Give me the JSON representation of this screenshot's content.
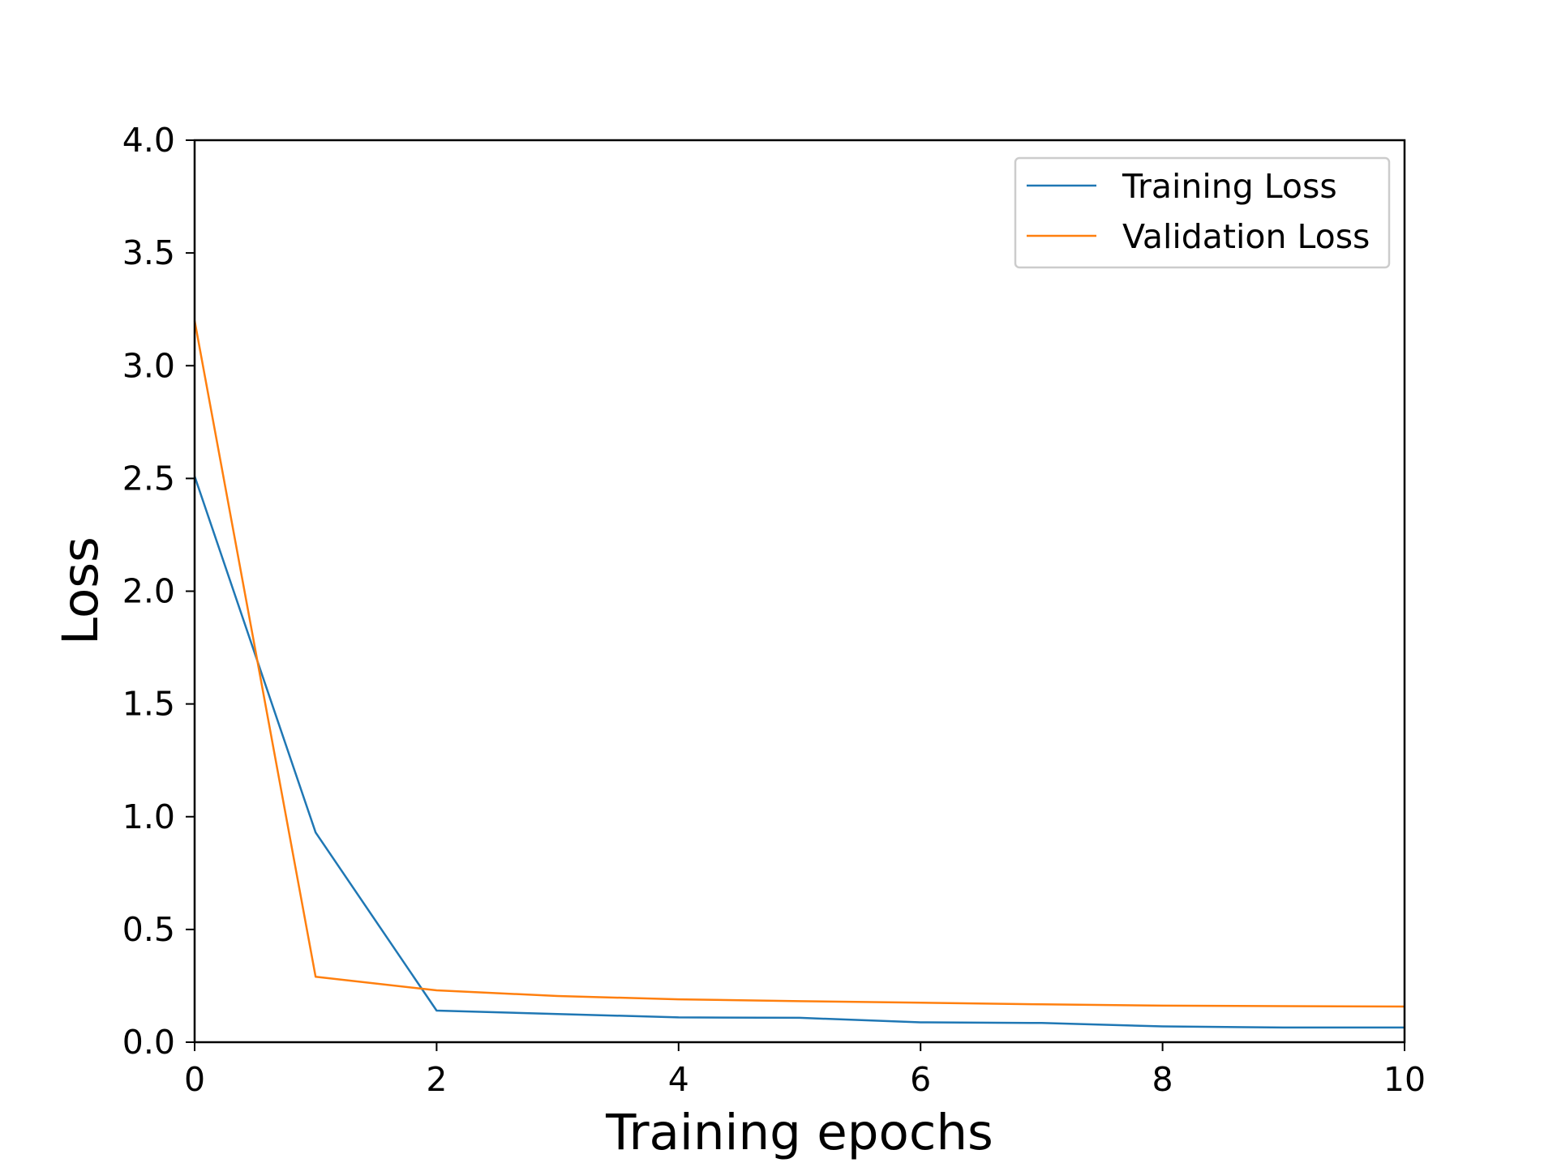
{
  "chart_data": {
    "type": "line",
    "title": "",
    "xlabel": "Training epochs",
    "ylabel": "Loss",
    "xlim": [
      0,
      10
    ],
    "ylim": [
      0,
      4.0
    ],
    "xticks": [
      0,
      2,
      4,
      6,
      8,
      10
    ],
    "xtick_labels": [
      "0",
      "2",
      "4",
      "6",
      "8",
      "10"
    ],
    "yticks": [
      0.0,
      0.5,
      1.0,
      1.5,
      2.0,
      2.5,
      3.0,
      3.5,
      4.0
    ],
    "ytick_labels": [
      "0.0",
      "0.5",
      "1.0",
      "1.5",
      "2.0",
      "2.5",
      "3.0",
      "3.5",
      "4.0"
    ],
    "grid": false,
    "legend_position": "top-right",
    "x": [
      0,
      1,
      2,
      3,
      4,
      5,
      6,
      7,
      8,
      9,
      10
    ],
    "series": [
      {
        "name": "Training Loss",
        "color": "#1f77b4",
        "values": [
          2.51,
          0.93,
          0.14,
          0.125,
          0.11,
          0.108,
          0.088,
          0.085,
          0.07,
          0.065,
          0.065
        ]
      },
      {
        "name": "Validation Loss",
        "color": "#ff7f0e",
        "values": [
          3.2,
          0.29,
          0.23,
          0.205,
          0.19,
          0.182,
          0.175,
          0.168,
          0.162,
          0.16,
          0.158
        ]
      }
    ]
  }
}
